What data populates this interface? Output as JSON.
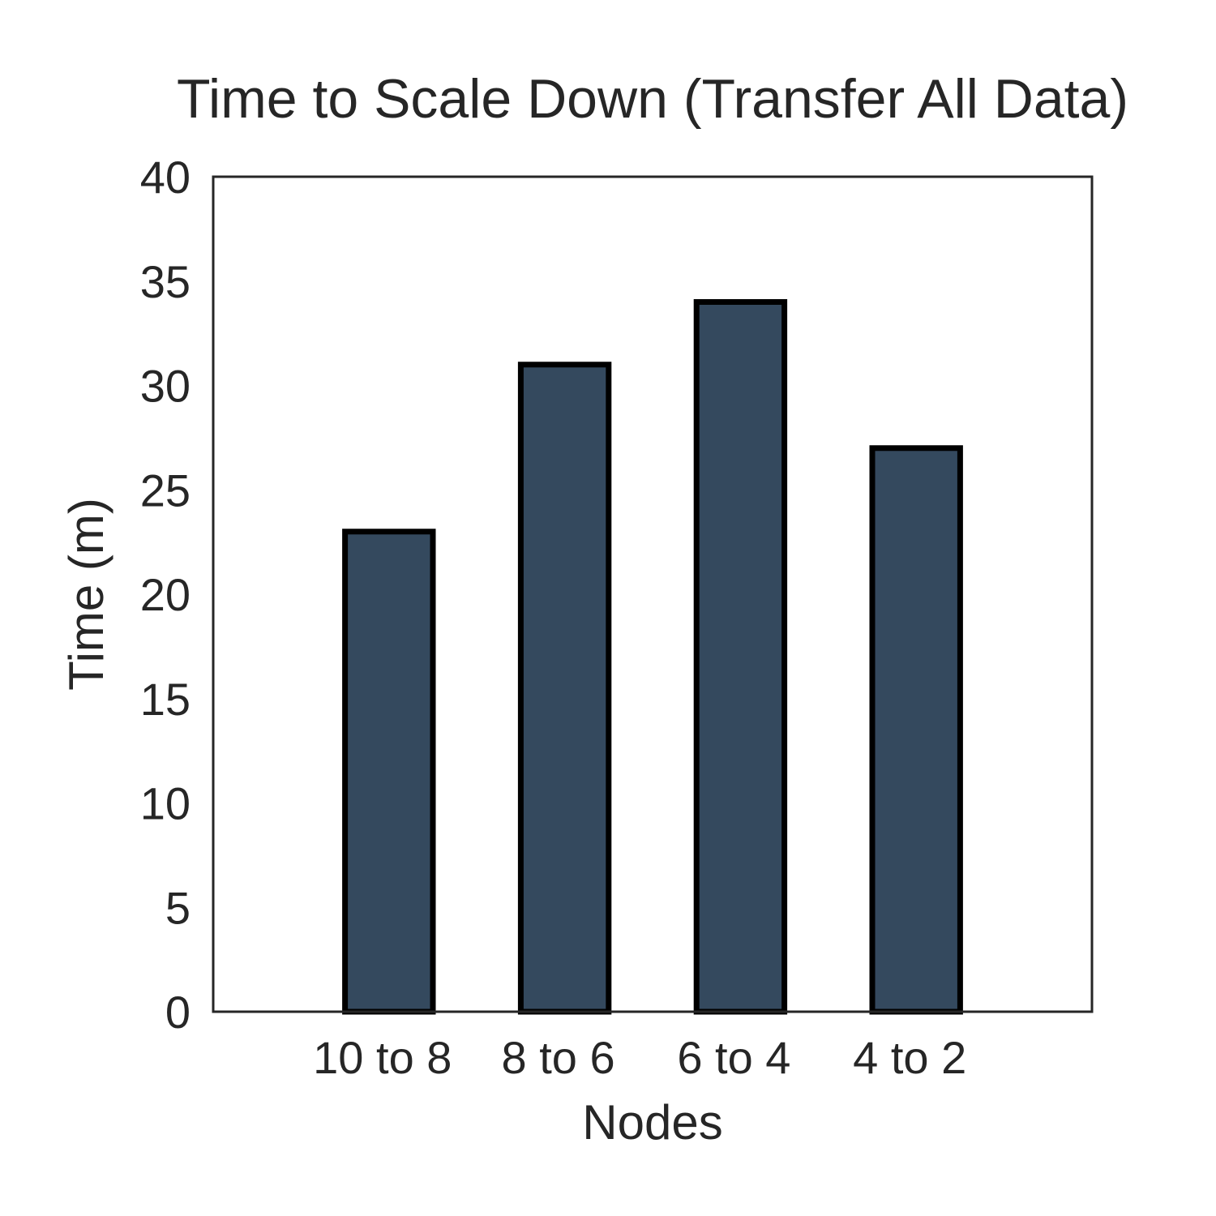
{
  "chart_data": {
    "type": "bar",
    "title": "Time to Scale Down (Transfer All Data)",
    "xlabel": "Nodes",
    "ylabel": "Time (m)",
    "categories": [
      "10 to 8",
      "8 to 6",
      "6 to 4",
      "4 to 2"
    ],
    "values": [
      23,
      31,
      34,
      27
    ],
    "ylim": [
      0,
      40
    ],
    "yticks": [
      0,
      5,
      10,
      15,
      20,
      25,
      30,
      35,
      40
    ],
    "grid": false,
    "legend": "none",
    "colors": {
      "bar_fill": "#34495e",
      "bar_edge": "#000000",
      "axes": "#262626",
      "text": "#262626"
    }
  }
}
